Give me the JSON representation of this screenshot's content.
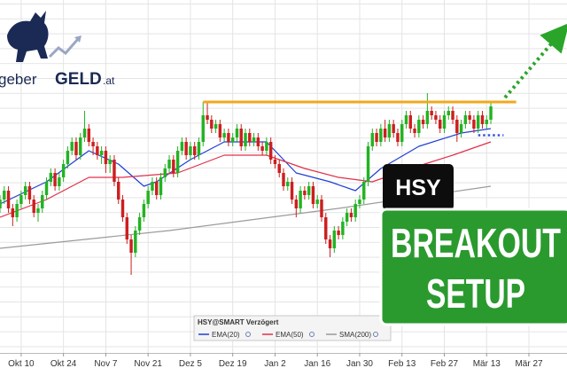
{
  "chart_data": {
    "type": "candlestick",
    "logo": {
      "prefix": "geber",
      "brand": "GELD",
      "suffix": ".at"
    },
    "xlim": [
      0,
      134
    ],
    "ylim": [
      206,
      285
    ],
    "xticks": [
      {
        "value": 5,
        "label": "Okt 10"
      },
      {
        "value": 15,
        "label": "Okt 24"
      },
      {
        "value": 25,
        "label": "Nov 7"
      },
      {
        "value": 35,
        "label": "Nov 21"
      },
      {
        "value": 45,
        "label": "Dez 5"
      },
      {
        "value": 55,
        "label": "Dez 19"
      },
      {
        "value": 65,
        "label": "Jan 2"
      },
      {
        "value": 75,
        "label": "Jan 16"
      },
      {
        "value": 85,
        "label": "Jan 30"
      },
      {
        "value": 95,
        "label": "Feb 13"
      },
      {
        "value": 105,
        "label": "Feb 27"
      },
      {
        "value": 115,
        "label": "Mär 13"
      },
      {
        "value": 125,
        "label": "Mär 27"
      }
    ],
    "up_color": "#22b322",
    "down_color": "#cc1f1f",
    "ohlc": [
      [
        238,
        241,
        237,
        240
      ],
      [
        240,
        243,
        239,
        242
      ],
      [
        242,
        243,
        237,
        238
      ],
      [
        238,
        239,
        234,
        236
      ],
      [
        236,
        240,
        235,
        239
      ],
      [
        239,
        242,
        238,
        241
      ],
      [
        241,
        244,
        240,
        243
      ],
      [
        243,
        244,
        239,
        240
      ],
      [
        240,
        241,
        236,
        237
      ],
      [
        237,
        239,
        235,
        238
      ],
      [
        238,
        242,
        237,
        241
      ],
      [
        241,
        245,
        240,
        244
      ],
      [
        244,
        247,
        243,
        246
      ],
      [
        246,
        247,
        242,
        243
      ],
      [
        243,
        246,
        242,
        245
      ],
      [
        245,
        249,
        244,
        248
      ],
      [
        248,
        252,
        247,
        251
      ],
      [
        251,
        254,
        250,
        253
      ],
      [
        253,
        254,
        249,
        250
      ],
      [
        250,
        255,
        249,
        254
      ],
      [
        254,
        260,
        253,
        256
      ],
      [
        256,
        257,
        252,
        253
      ],
      [
        253,
        254,
        250,
        252
      ],
      [
        252,
        253,
        249,
        250
      ],
      [
        250,
        252,
        248,
        251
      ],
      [
        251,
        252,
        246,
        248
      ],
      [
        248,
        250,
        246,
        249
      ],
      [
        249,
        250,
        243,
        244
      ],
      [
        244,
        245,
        239,
        240
      ],
      [
        240,
        241,
        235,
        236
      ],
      [
        236,
        237,
        230,
        231
      ],
      [
        231,
        232,
        223,
        228
      ],
      [
        228,
        234,
        227,
        233
      ],
      [
        233,
        237,
        232,
        236
      ],
      [
        236,
        240,
        235,
        239
      ],
      [
        239,
        243,
        238,
        242
      ],
      [
        242,
        245,
        241,
        244
      ],
      [
        244,
        245,
        240,
        241
      ],
      [
        241,
        246,
        240,
        245
      ],
      [
        245,
        248,
        244,
        247
      ],
      [
        247,
        250,
        246,
        249
      ],
      [
        249,
        250,
        245,
        246
      ],
      [
        246,
        252,
        245,
        251
      ],
      [
        251,
        254,
        250,
        253
      ],
      [
        253,
        254,
        249,
        250
      ],
      [
        250,
        253,
        249,
        252
      ],
      [
        252,
        253,
        249,
        250
      ],
      [
        250,
        254,
        249,
        253
      ],
      [
        253,
        262,
        252,
        259
      ],
      [
        259,
        262,
        257,
        258
      ],
      [
        258,
        259,
        255,
        256
      ],
      [
        256,
        258,
        255,
        257
      ],
      [
        257,
        258,
        253,
        254
      ],
      [
        254,
        256,
        253,
        255
      ],
      [
        255,
        256,
        252,
        253
      ],
      [
        253,
        255,
        252,
        254
      ],
      [
        254,
        257,
        253,
        256
      ],
      [
        256,
        257,
        251,
        252
      ],
      [
        252,
        256,
        251,
        255
      ],
      [
        255,
        256,
        252,
        253
      ],
      [
        253,
        255,
        252,
        254
      ],
      [
        254,
        255,
        251,
        252
      ],
      [
        252,
        253,
        250,
        251
      ],
      [
        251,
        254,
        250,
        253
      ],
      [
        253,
        254,
        248,
        249
      ],
      [
        249,
        250,
        247,
        248
      ],
      [
        248,
        249,
        245,
        246
      ],
      [
        246,
        247,
        242,
        243
      ],
      [
        243,
        245,
        242,
        244
      ],
      [
        244,
        245,
        239,
        240
      ],
      [
        240,
        241,
        236,
        238
      ],
      [
        238,
        243,
        237,
        242
      ],
      [
        242,
        243,
        240,
        241
      ],
      [
        241,
        244,
        240,
        243
      ],
      [
        243,
        244,
        238,
        239
      ],
      [
        239,
        241,
        238,
        240
      ],
      [
        240,
        241,
        235,
        236
      ],
      [
        236,
        237,
        230,
        231
      ],
      [
        231,
        232,
        227,
        229
      ],
      [
        229,
        234,
        228,
        233
      ],
      [
        233,
        234,
        231,
        232
      ],
      [
        232,
        236,
        231,
        235
      ],
      [
        235,
        238,
        234,
        237
      ],
      [
        237,
        238,
        235,
        236
      ],
      [
        236,
        240,
        235,
        239
      ],
      [
        239,
        241,
        238,
        240
      ],
      [
        240,
        245,
        239,
        244
      ],
      [
        244,
        253,
        243,
        252
      ],
      [
        252,
        256,
        251,
        255
      ],
      [
        255,
        256,
        252,
        253
      ],
      [
        253,
        257,
        252,
        256
      ],
      [
        256,
        258,
        253,
        254
      ],
      [
        254,
        258,
        253,
        257
      ],
      [
        257,
        258,
        254,
        255
      ],
      [
        255,
        256,
        252,
        253
      ],
      [
        253,
        258,
        252,
        257
      ],
      [
        257,
        260,
        256,
        259
      ],
      [
        259,
        260,
        255,
        256
      ],
      [
        256,
        257,
        254,
        255
      ],
      [
        255,
        259,
        254,
        258
      ],
      [
        258,
        259,
        256,
        257
      ],
      [
        257,
        264,
        256,
        260
      ],
      [
        260,
        261,
        258,
        259
      ],
      [
        259,
        260,
        257,
        258
      ],
      [
        258,
        259,
        255,
        256
      ],
      [
        256,
        260,
        255,
        259
      ],
      [
        259,
        261,
        258,
        260
      ],
      [
        260,
        261,
        257,
        258
      ],
      [
        258,
        259,
        253,
        255
      ],
      [
        255,
        258,
        254,
        257
      ],
      [
        257,
        260,
        256,
        259
      ],
      [
        259,
        260,
        257,
        258
      ],
      [
        258,
        259,
        255,
        256
      ],
      [
        256,
        260,
        255,
        259
      ],
      [
        259,
        260,
        256,
        257
      ],
      [
        257,
        259,
        256,
        258
      ],
      [
        258,
        262,
        257,
        261
      ]
    ],
    "series": [
      {
        "name": "EMA(20)",
        "color": "#1f3fd6",
        "x": [
          0,
          11,
          21,
          28,
          34,
          37,
          45,
          53,
          63,
          70,
          78,
          84,
          90,
          99,
          109,
          116
        ],
        "values": [
          239,
          244,
          251,
          248,
          243,
          244,
          249,
          253,
          253,
          246,
          244,
          242,
          247,
          252,
          255,
          256
        ]
      },
      {
        "name": "EMA(50)",
        "color": "#e0304a",
        "x": [
          0,
          11,
          21,
          29,
          42,
          53,
          63,
          72,
          80,
          88,
          97,
          107,
          116
        ],
        "values": [
          236,
          240,
          245,
          245,
          246,
          250,
          250,
          247,
          245,
          244,
          247,
          250,
          253
        ]
      },
      {
        "name": "SMA(200)",
        "color": "#9a9a9a",
        "x": [
          0,
          40,
          80,
          116
        ],
        "values": [
          229,
          233,
          238,
          243
        ]
      }
    ],
    "legend_title": "HSY@SMART Verzögert",
    "resistance": {
      "value": 262,
      "x": [
        48,
        122
      ],
      "color": "#f2a81d"
    },
    "support": {
      "value": 254.5,
      "x": [
        113,
        119
      ],
      "color": "#3355dd"
    },
    "badge": "HSY",
    "setup_label": [
      "BREAKOUT",
      "SETUP"
    ]
  }
}
